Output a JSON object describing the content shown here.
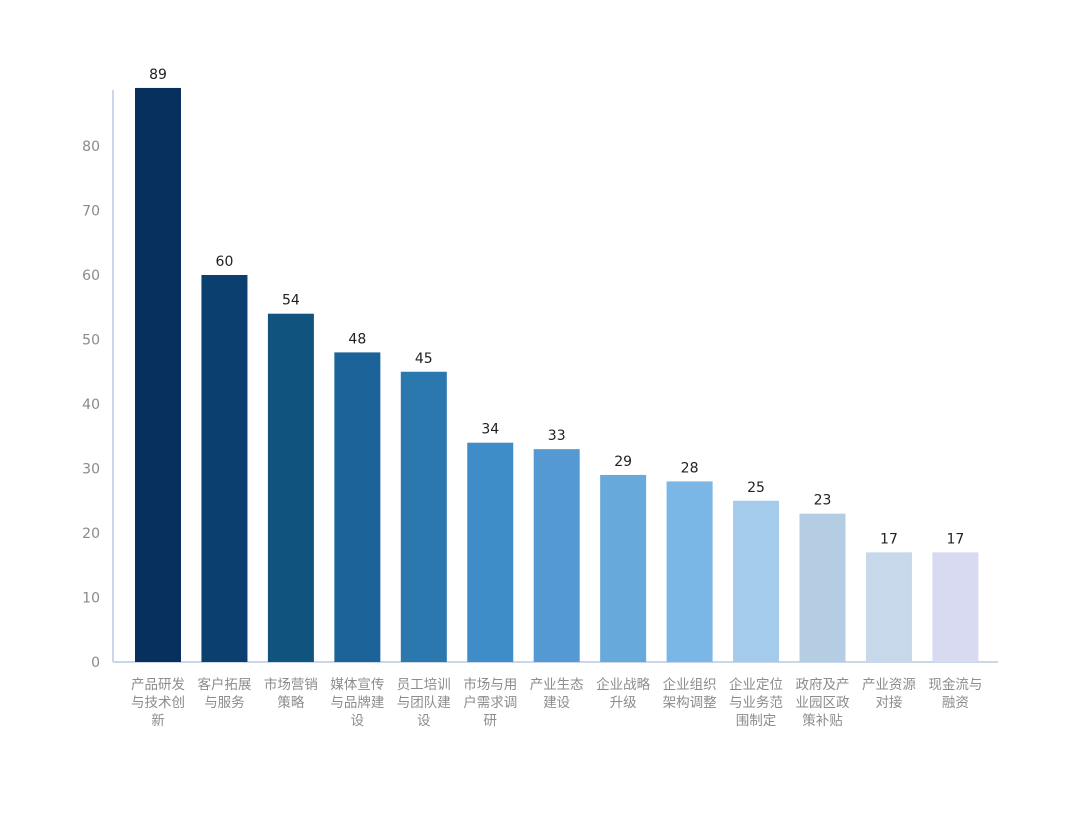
{
  "chart_data": {
    "type": "bar",
    "title": "",
    "xlabel": "",
    "ylabel": "",
    "ylim": [
      0,
      90
    ],
    "yticks": [
      0,
      10,
      20,
      30,
      40,
      50,
      60,
      70,
      80
    ],
    "grid": false,
    "legend": "none",
    "categories": [
      "产品研发与技术创新",
      "客户拓展与服务",
      "市场营销策略",
      "媒体宣传与品牌建设",
      "员工培训与团队建设",
      "市场与用户需求调研",
      "产业生态建设",
      "企业战略升级",
      "企业组织架构调整",
      "企业定位与业务范围制定",
      "政府及产业园区政策补贴",
      "产业资源对接",
      "现金流与融资"
    ],
    "category_lines": [
      [
        "产品研发",
        "与技术创",
        "新"
      ],
      [
        "客户拓展",
        "与服务"
      ],
      [
        "市场营销",
        "策略"
      ],
      [
        "媒体宣传",
        "与品牌建",
        "设"
      ],
      [
        "员工培训",
        "与团队建",
        "设"
      ],
      [
        "市场与用",
        "户需求调",
        "研"
      ],
      [
        "产业生态",
        "建设"
      ],
      [
        "企业战略",
        "升级"
      ],
      [
        "企业组织",
        "架构调整"
      ],
      [
        "企业定位",
        "与业务范",
        "围制定"
      ],
      [
        "政府及产",
        "业园区政",
        "策补贴"
      ],
      [
        "产业资源",
        "对接"
      ],
      [
        "现金流与",
        "融资"
      ]
    ],
    "values": [
      89,
      60,
      54,
      48,
      45,
      34,
      33,
      29,
      28,
      25,
      23,
      17,
      17
    ],
    "colors": [
      "#08305e",
      "#0b3f6f",
      "#10537f",
      "#1b6399",
      "#2a78ad",
      "#3f8dc8",
      "#5499d1",
      "#68a9dc",
      "#7bb7e6",
      "#a4cbeb",
      "#b4cde3",
      "#c6d8ea",
      "#d7daf0"
    ],
    "axis_color": "#c9d7e8",
    "tick_label_color": "#8a8a8a",
    "category_label_color": "#8c8c8c",
    "value_label_color": "#222222"
  }
}
